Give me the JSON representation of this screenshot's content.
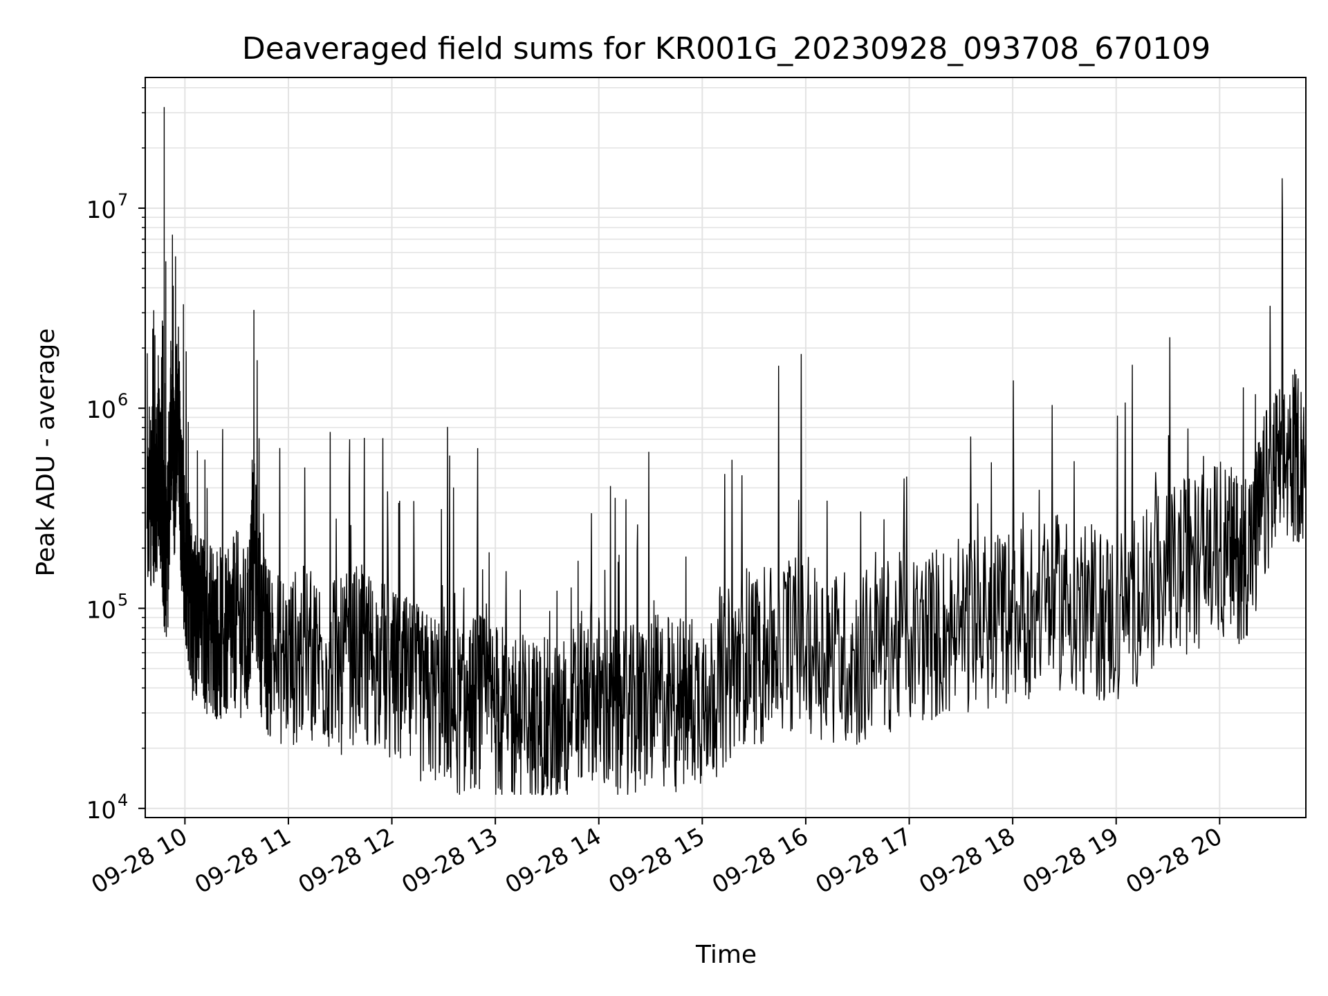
{
  "chart_data": {
    "type": "line",
    "title": "Deaveraged field sums for KR001G_20230928_093708_670109",
    "xlabel": "Time",
    "ylabel": "Peak ADU - average",
    "yscale": "log",
    "ylim": [
      9000,
      45000000
    ],
    "xlim": [
      "2023-09-28 09:37:08",
      "2023-09-28 20:50:00"
    ],
    "grid": true,
    "line_color": "#000000",
    "grid_color": "#e3e3e3",
    "x_ticks": [
      {
        "label": "09-28 10",
        "time": "2023-09-28 10:00"
      },
      {
        "label": "09-28 11",
        "time": "2023-09-28 11:00"
      },
      {
        "label": "09-28 12",
        "time": "2023-09-28 12:00"
      },
      {
        "label": "09-28 13",
        "time": "2023-09-28 13:00"
      },
      {
        "label": "09-28 14",
        "time": "2023-09-28 14:00"
      },
      {
        "label": "09-28 15",
        "time": "2023-09-28 15:00"
      },
      {
        "label": "09-28 16",
        "time": "2023-09-28 16:00"
      },
      {
        "label": "09-28 17",
        "time": "2023-09-28 17:00"
      },
      {
        "label": "09-28 18",
        "time": "2023-09-28 18:00"
      },
      {
        "label": "09-28 19",
        "time": "2023-09-28 19:00"
      },
      {
        "label": "09-28 20",
        "time": "2023-09-28 20:00"
      }
    ],
    "y_ticks": [
      {
        "base": "10",
        "exp": "4",
        "value": 10000
      },
      {
        "base": "10",
        "exp": "5",
        "value": 100000
      },
      {
        "base": "10",
        "exp": "6",
        "value": 1000000
      },
      {
        "base": "10",
        "exp": "7",
        "value": 10000000
      }
    ],
    "series": [
      {
        "x": [
          "2023-09-28 09:38",
          "2023-09-28 09:41",
          "2023-09-28 09:43",
          "2023-09-28 09:45",
          "2023-09-28 09:47",
          "2023-09-28 09:48",
          "2023-09-28 09:50",
          "2023-09-28 09:52",
          "2023-09-28 09:54",
          "2023-09-28 09:56",
          "2023-09-28 09:58",
          "2023-09-28 10:00",
          "2023-09-28 10:03",
          "2023-09-28 10:05",
          "2023-09-28 10:10",
          "2023-09-28 10:15",
          "2023-09-28 10:20",
          "2023-09-28 10:25",
          "2023-09-28 10:30",
          "2023-09-28 10:36",
          "2023-09-28 10:40",
          "2023-09-28 10:45",
          "2023-09-28 10:50",
          "2023-09-28 11:00",
          "2023-09-28 11:10",
          "2023-09-28 11:20",
          "2023-09-28 11:30",
          "2023-09-28 11:40",
          "2023-09-28 11:50",
          "2023-09-28 12:00",
          "2023-09-28 12:10",
          "2023-09-28 12:20",
          "2023-09-28 12:30",
          "2023-09-28 12:40",
          "2023-09-28 12:50",
          "2023-09-28 12:58",
          "2023-09-28 13:05",
          "2023-09-28 13:15",
          "2023-09-28 13:25",
          "2023-09-28 13:35",
          "2023-09-28 13:45",
          "2023-09-28 13:55",
          "2023-09-28 14:05",
          "2023-09-28 14:15",
          "2023-09-28 14:25",
          "2023-09-28 14:35",
          "2023-09-28 14:45",
          "2023-09-28 14:55",
          "2023-09-28 15:05",
          "2023-09-28 15:15",
          "2023-09-28 15:25",
          "2023-09-28 15:35",
          "2023-09-28 15:45",
          "2023-09-28 16:00",
          "2023-09-28 16:15",
          "2023-09-28 16:30",
          "2023-09-28 16:45",
          "2023-09-28 17:00",
          "2023-09-28 17:15",
          "2023-09-28 17:30",
          "2023-09-28 17:45",
          "2023-09-28 18:00",
          "2023-09-28 18:15",
          "2023-09-28 18:30",
          "2023-09-28 18:45",
          "2023-09-28 19:00",
          "2023-09-28 19:15",
          "2023-09-28 19:30",
          "2023-09-28 19:45",
          "2023-09-28 20:00",
          "2023-09-28 20:10",
          "2023-09-28 20:20",
          "2023-09-28 20:30",
          "2023-09-28 20:40",
          "2023-09-28 20:50"
        ],
        "y": [
          250000,
          400000,
          350000,
          500000,
          300000,
          32000000,
          200000,
          900000,
          400000,
          1400000,
          300000,
          180000,
          120000,
          90000,
          85000,
          80000,
          75000,
          70000,
          90000,
          65000,
          3100000,
          70000,
          60000,
          55000,
          60000,
          55000,
          50000,
          60000,
          55000,
          45000,
          40000,
          35000,
          38000,
          30000,
          35000,
          32000,
          30000,
          28000,
          26000,
          25000,
          30000,
          40000,
          30000,
          28000,
          32000,
          35000,
          33000,
          35000,
          38000,
          45000,
          60000,
          55000,
          70000,
          65000,
          60000,
          55000,
          65000,
          70000,
          75000,
          80000,
          85000,
          95000,
          100000,
          110000,
          95000,
          90000,
          120000,
          150000,
          170000,
          200000,
          180000,
          220000,
          450000,
          550000,
          600000
        ]
      }
    ]
  }
}
